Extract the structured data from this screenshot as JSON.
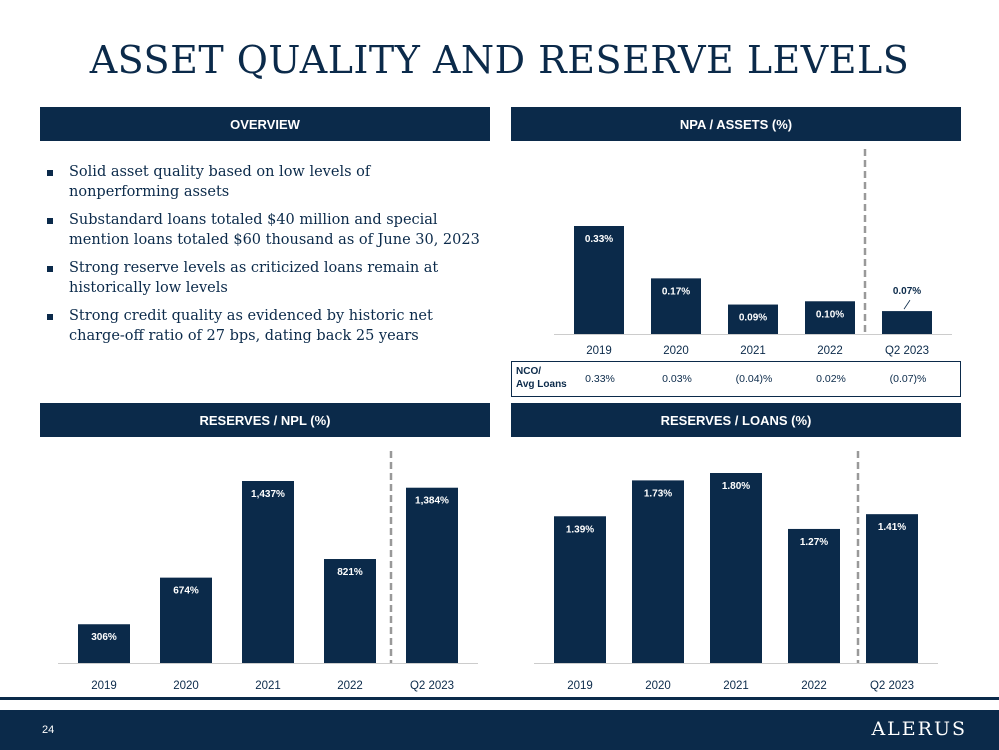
{
  "title": "ASSET QUALITY AND RESERVE LEVELS",
  "colors": {
    "navy": "#0b2a4a",
    "white": "#ffffff",
    "divider": "#999999",
    "axis": "#cccccc"
  },
  "overview": {
    "header": "OVERVIEW",
    "bullets": [
      "Solid asset quality based on low levels of nonperforming assets",
      "Substandard loans totaled $40 million and special mention loans totaled $60 thousand as of June 30, 2023",
      "Strong reserve levels as criticized loans remain at historically low levels",
      "Strong credit quality as evidenced by historic net charge-off ratio of 27 bps, dating back 25 years"
    ]
  },
  "npa": {
    "header": "NPA / ASSETS (%)",
    "nco": {
      "label_line1": "NCO/",
      "label_line2": "Avg Loans",
      "values": [
        "0.33%",
        "0.03%",
        "(0.04)%",
        "0.02%",
        "(0.07)%"
      ]
    }
  },
  "res_npl": {
    "header": "RESERVES / NPL (%)"
  },
  "res_loans": {
    "header": "RESERVES / LOANS (%)"
  },
  "chart_data": [
    {
      "id": "npa",
      "type": "bar",
      "categories": [
        "2019",
        "2020",
        "2021",
        "2022",
        "Q2 2023"
      ],
      "values": [
        0.33,
        0.17,
        0.09,
        0.1,
        0.07
      ],
      "labels": [
        "0.33%",
        "0.17%",
        "0.09%",
        "0.10%",
        "0.07%"
      ],
      "ylim": [
        0,
        0.5
      ]
    },
    {
      "id": "res_npl",
      "type": "bar",
      "categories": [
        "2019",
        "2020",
        "2021",
        "2022",
        "Q2 2023"
      ],
      "values": [
        306,
        674,
        1437,
        821,
        1384
      ],
      "labels": [
        "306%",
        "674%",
        "1,437%",
        "821%",
        "1,384%"
      ],
      "ylim": [
        0,
        1600
      ]
    },
    {
      "id": "res_loans",
      "type": "bar",
      "categories": [
        "2019",
        "2020",
        "2021",
        "2022",
        "Q2 2023"
      ],
      "values": [
        1.39,
        1.73,
        1.8,
        1.27,
        1.41
      ],
      "labels": [
        "1.39%",
        "1.73%",
        "1.80%",
        "1.27%",
        "1.41%"
      ],
      "ylim": [
        0,
        2.0
      ]
    }
  ],
  "footer": {
    "page_number": "24",
    "logo": "ALERUS"
  }
}
